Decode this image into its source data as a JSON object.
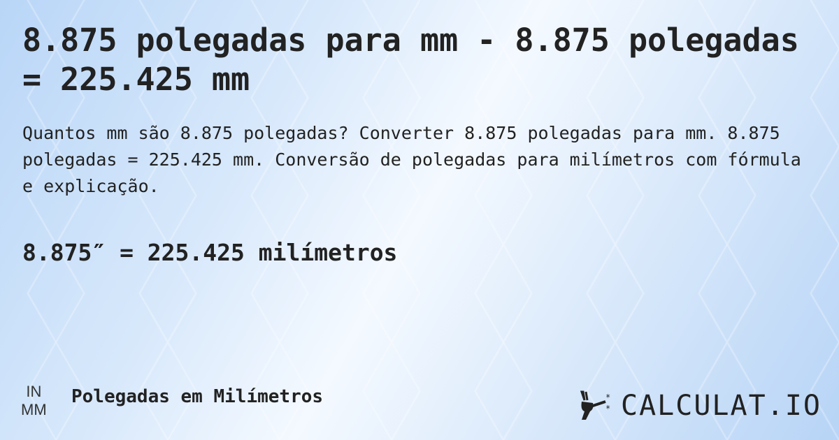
{
  "title": "8.875 polegadas para mm - 8.875 polegadas = 225.425 mm",
  "description": "Quantos mm são 8.875 polegadas? Converter 8.875 polegadas para mm. 8.875 polegadas = 225.425 mm. Conversão de polegadas para milímetros com fórmula e explicação.",
  "result": "8.875″ = 225.425 milímetros",
  "footer": {
    "unit_from": "IN",
    "unit_to": "MM",
    "category": "Polegadas em Milímetros",
    "logo": "CALCULAT.IO"
  }
}
